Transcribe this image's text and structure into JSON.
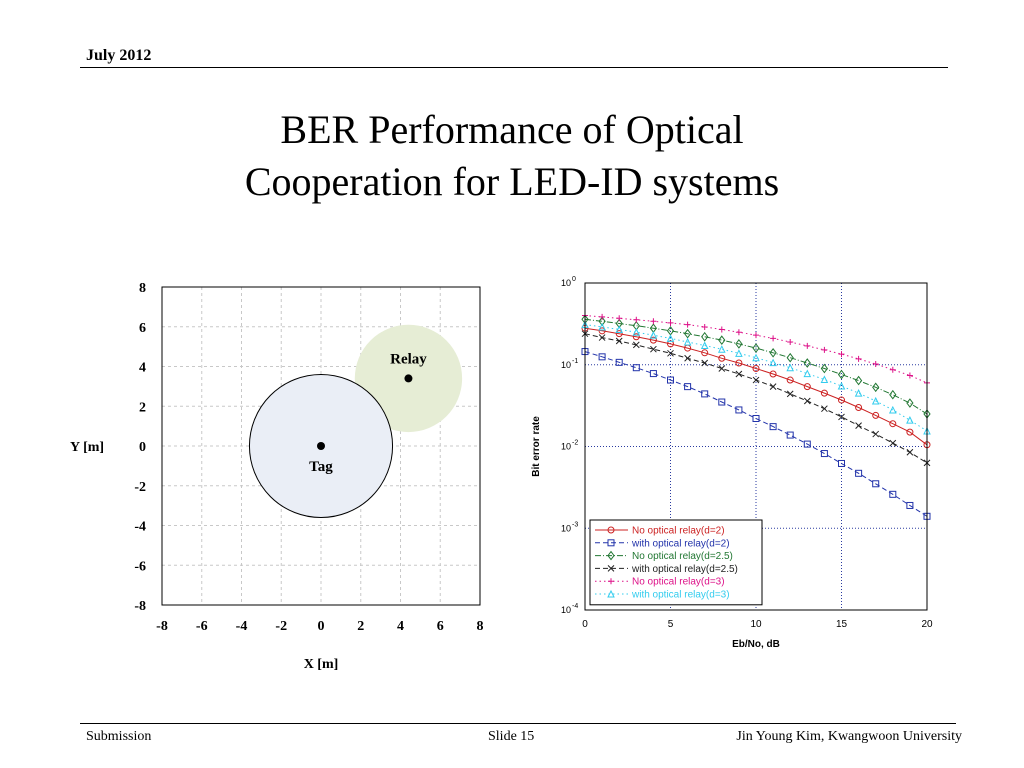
{
  "header": {
    "date": "July 2012"
  },
  "title": {
    "line1": "BER Performance of Optical",
    "line2": "Cooperation for LED-ID systems"
  },
  "footer": {
    "left": "Submission",
    "center": "Slide 15",
    "right": "Jin Young Kim, Kwangwoon University"
  },
  "chart_data": [
    {
      "type": "scatter",
      "xlabel": "X [m]",
      "ylabel": "Y [m]",
      "xlim": [
        -8,
        8
      ],
      "ylim": [
        -8,
        8
      ],
      "xticks": [
        -8,
        -6,
        -4,
        -2,
        0,
        2,
        4,
        6,
        8
      ],
      "yticks": [
        8,
        6,
        4,
        2,
        0,
        -2,
        -4,
        -6,
        -8
      ],
      "grid": true,
      "circles": [
        {
          "label": "Relay",
          "cx": 4.4,
          "cy": 3.4,
          "r": 2.7,
          "fill": "#e6edd5",
          "stroke": "none"
        },
        {
          "label": "Tag",
          "cx": 0,
          "cy": 0,
          "r": 3.6,
          "fill": "#eaeef6",
          "stroke": "#000000"
        }
      ],
      "points": [
        {
          "label": "Relay",
          "x": 4.4,
          "y": 3.4
        },
        {
          "label": "Tag",
          "x": 0,
          "y": 0
        }
      ]
    },
    {
      "type": "line",
      "xlabel": "Eb/No, dB",
      "ylabel": "Bit error rate",
      "xlim": [
        0,
        20
      ],
      "ylim": [
        0.0001,
        1
      ],
      "yscale": "log",
      "xticks": [
        "0",
        "5",
        "10",
        "15",
        "20"
      ],
      "yticks": [
        {
          "base": "10",
          "exp": "0",
          "value": 1
        },
        {
          "base": "10",
          "exp": "-1",
          "value": 0.1
        },
        {
          "base": "10",
          "exp": "-2",
          "value": 0.01
        },
        {
          "base": "10",
          "exp": "-3",
          "value": 0.001
        },
        {
          "base": "10",
          "exp": "-4",
          "value": 0.0001
        }
      ],
      "grid": true,
      "legend_position": "bottom-left",
      "x": [
        0,
        1,
        2,
        3,
        4,
        5,
        6,
        7,
        8,
        9,
        10,
        11,
        12,
        13,
        14,
        15,
        16,
        17,
        18,
        19,
        20
      ],
      "series": [
        {
          "name": "No optical relay(d=2)",
          "color": "#cc2222",
          "marker": "circle",
          "dash": "solid",
          "values": [
            0.28,
            0.26,
            0.24,
            0.22,
            0.2,
            0.18,
            0.16,
            0.14,
            0.12,
            0.105,
            0.09,
            0.077,
            0.065,
            0.054,
            0.045,
            0.037,
            0.03,
            0.024,
            0.019,
            0.015,
            0.0105
          ]
        },
        {
          "name": "with optical relay(d=2)",
          "color": "#2233aa",
          "marker": "square",
          "dash": "dashed",
          "values": [
            0.145,
            0.125,
            0.107,
            0.092,
            0.078,
            0.065,
            0.054,
            0.044,
            0.035,
            0.028,
            0.022,
            0.0175,
            0.0138,
            0.0107,
            0.0082,
            0.0062,
            0.0047,
            0.0035,
            0.0026,
            0.0019,
            0.0014
          ]
        },
        {
          "name": "No optical relay(d=2.5)",
          "color": "#227733",
          "marker": "diamond",
          "dash": "dashdot",
          "values": [
            0.36,
            0.34,
            0.32,
            0.3,
            0.28,
            0.26,
            0.24,
            0.22,
            0.2,
            0.18,
            0.16,
            0.14,
            0.122,
            0.105,
            0.09,
            0.076,
            0.064,
            0.053,
            0.043,
            0.034,
            0.025
          ]
        },
        {
          "name": "with optical relay(d=2.5)",
          "color": "#222222",
          "marker": "x",
          "dash": "dashed",
          "values": [
            0.24,
            0.215,
            0.195,
            0.175,
            0.155,
            0.138,
            0.12,
            0.105,
            0.09,
            0.077,
            0.065,
            0.054,
            0.044,
            0.036,
            0.029,
            0.023,
            0.018,
            0.0142,
            0.011,
            0.0085,
            0.0063
          ]
        },
        {
          "name": "No optical relay(d=3)",
          "color": "#dd1188",
          "marker": "plus",
          "dash": "dotted",
          "values": [
            0.4,
            0.385,
            0.37,
            0.355,
            0.34,
            0.325,
            0.31,
            0.29,
            0.27,
            0.25,
            0.23,
            0.21,
            0.19,
            0.17,
            0.152,
            0.135,
            0.118,
            0.102,
            0.087,
            0.074,
            0.06
          ]
        },
        {
          "name": "with optical relay(d=3)",
          "color": "#33ccee",
          "marker": "triangle",
          "dash": "dotted",
          "values": [
            0.31,
            0.29,
            0.27,
            0.25,
            0.23,
            0.21,
            0.19,
            0.172,
            0.155,
            0.138,
            0.122,
            0.106,
            0.092,
            0.078,
            0.066,
            0.055,
            0.045,
            0.036,
            0.028,
            0.021,
            0.0155
          ]
        }
      ]
    }
  ]
}
